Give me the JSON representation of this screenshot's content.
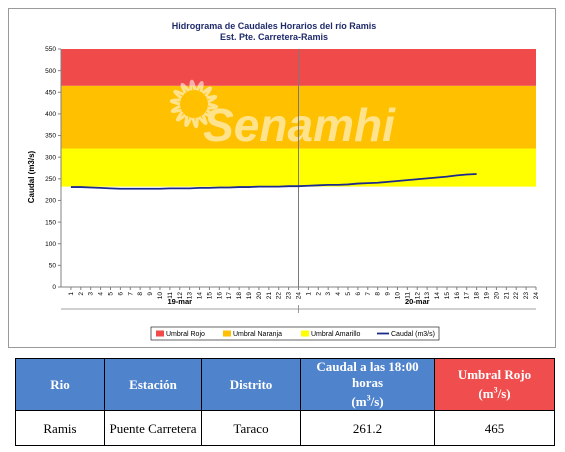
{
  "chart_data": {
    "type": "line",
    "title": "Hidrograma de Caudales Horarios del río Ramis",
    "subtitle": "Est. Pte. Carretera-Ramis",
    "ylabel": "Caudal  (m3/s)",
    "ylim": [
      0,
      550
    ],
    "yticks": [
      0,
      50,
      100,
      150,
      200,
      250,
      300,
      350,
      400,
      450,
      500,
      550
    ],
    "xlim": [
      0,
      48
    ],
    "x_tick_labels": [
      "1",
      "2",
      "3",
      "4",
      "5",
      "6",
      "7",
      "8",
      "9",
      "10",
      "11",
      "12",
      "13",
      "14",
      "15",
      "16",
      "17",
      "18",
      "19",
      "20",
      "21",
      "22",
      "23",
      "24",
      "1",
      "2",
      "3",
      "4",
      "5",
      "6",
      "7",
      "8",
      "9",
      "10",
      "11",
      "12",
      "13",
      "14",
      "15",
      "16",
      "17",
      "18",
      "19",
      "20",
      "21",
      "22",
      "23",
      "24"
    ],
    "days": [
      "19-mar",
      "20-mar"
    ],
    "watermark": "Senamhi",
    "threshold_bands": [
      {
        "name": "Umbral Amarillo",
        "from": 232,
        "to": 320,
        "color": "#ffff00"
      },
      {
        "name": "Umbral Naranja",
        "from": 320,
        "to": 465,
        "color": "#ffc000"
      },
      {
        "name": "Umbral Rojo",
        "from": 465,
        "to": 550,
        "color": "#f04a4a"
      }
    ],
    "series": [
      {
        "name": "Caudal (m3/s)",
        "color": "#1c2a8f",
        "x": [
          1,
          2,
          3,
          4,
          5,
          6,
          7,
          8,
          9,
          10,
          11,
          12,
          13,
          14,
          15,
          16,
          17,
          18,
          19,
          20,
          21,
          22,
          23,
          24,
          25,
          26,
          27,
          28,
          29,
          30,
          31,
          32,
          33,
          34,
          35,
          36,
          37,
          38,
          39,
          40,
          41,
          42
        ],
        "values": [
          231,
          231,
          230,
          229,
          228,
          227,
          227,
          227,
          227,
          227,
          228,
          228,
          228,
          229,
          229,
          230,
          230,
          231,
          231,
          232,
          232,
          232,
          233,
          233,
          234,
          235,
          236,
          236,
          237,
          239,
          240,
          241,
          243,
          245,
          247,
          249,
          251,
          253,
          255,
          258,
          260,
          261.2
        ]
      }
    ],
    "legend": [
      {
        "label": "Umbral Rojo",
        "color": "#f04a4a"
      },
      {
        "label": "Umbral Naranja",
        "color": "#ffc000"
      },
      {
        "label": "Umbral Amarillo",
        "color": "#ffff00"
      },
      {
        "label": "Caudal (m3/s)",
        "color": "#1c2a8f"
      }
    ],
    "legend_position": "bottom"
  },
  "table": {
    "headers": [
      "Rio",
      "Estación",
      "Distrito",
      "Caudal a las 18:00 horas",
      "Umbral Rojo"
    ],
    "header_unit": "(m",
    "header_unit_sup": "3",
    "header_unit_end": "/s)",
    "row": [
      "Ramis",
      "Puente Carretera",
      "Taraco",
      "261.2",
      "465"
    ]
  }
}
